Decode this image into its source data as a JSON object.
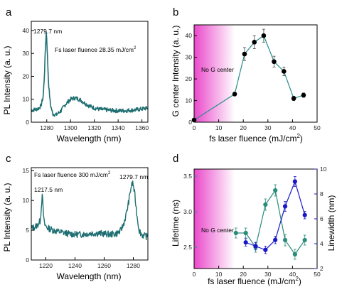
{
  "panels": {
    "a": "a",
    "b": "b",
    "c": "c",
    "d": "d"
  },
  "colors": {
    "spectrum": "#1f6f72",
    "spectrum_dark": "#0b2f30",
    "g_line": "#2a8c8c",
    "lifetime": "#2a8c7a",
    "linewidth": "#1a17c8",
    "no_g_region": "#e93fc8"
  },
  "chart_data": [
    {
      "id": "a",
      "type": "line",
      "xlabel": "Wavelength (nm)",
      "ylabel": "PL Intensity (a. u.)",
      "xlim": [
        1267,
        1365
      ],
      "ylim": [
        0,
        44
      ],
      "xticks": [
        1280,
        1300,
        1320,
        1340,
        1360
      ],
      "yticks": [
        0,
        10,
        20,
        30,
        40
      ],
      "grid": false,
      "annotations": [
        "1279.7 nm",
        "Fs laser fluence 28.35 mJ/cm",
        "2"
      ],
      "series": [
        {
          "x": [
            1267,
            1270,
            1273,
            1275,
            1277,
            1278,
            1279,
            1279.7,
            1280.5,
            1281.5,
            1283,
            1285,
            1288,
            1292,
            1296,
            1300,
            1304,
            1308,
            1312,
            1316,
            1320,
            1325,
            1330,
            1335,
            1340,
            1345,
            1350,
            1355,
            1360,
            1365
          ],
          "y": [
            5.2,
            5.5,
            6.0,
            7.0,
            11.0,
            20.0,
            34.0,
            40.0,
            30.0,
            17.0,
            8.0,
            3.6,
            3.2,
            5.0,
            8.0,
            10.0,
            10.6,
            9.8,
            8.3,
            7.0,
            6.2,
            5.6,
            5.4,
            5.1,
            5.0,
            5.0,
            5.2,
            5.4,
            5.8,
            6.2
          ]
        }
      ]
    },
    {
      "id": "b",
      "type": "scatter",
      "xlabel": "fs laser fluence (mJ/cm",
      "xlabel_sup": "2",
      "xlabel_end": ")",
      "ylabel": "G center Intensity (a. u.)",
      "xlim": [
        0,
        50
      ],
      "ylim": [
        0,
        45
      ],
      "xticks": [
        0,
        10,
        20,
        30,
        40,
        50
      ],
      "yticks": [
        0,
        10,
        20,
        30,
        40
      ],
      "grid": false,
      "shaded_region": {
        "x0": 0,
        "x1": 16.5,
        "label": "No G center"
      },
      "series": [
        {
          "x": [
            0,
            16.5,
            20.5,
            24.5,
            28.3,
            32.5,
            36.5,
            40.5,
            44.5
          ],
          "y": [
            1.0,
            13.0,
            31.5,
            37.0,
            40.0,
            28.0,
            23.5,
            11.0,
            12.5
          ],
          "err": [
            0,
            0.8,
            3.0,
            3.0,
            3.0,
            2.5,
            2.0,
            1.0,
            1.0
          ]
        }
      ]
    },
    {
      "id": "c",
      "type": "line",
      "xlabel": "Wavelength (nm)",
      "ylabel": "PL Intensity (a. u.)",
      "xlim": [
        1210,
        1290
      ],
      "ylim": [
        0,
        15.5
      ],
      "xticks": [
        1220,
        1240,
        1260,
        1280
      ],
      "yticks": [
        0,
        5,
        10,
        15
      ],
      "grid": false,
      "annotations": [
        "Fs laser fluence 300 mJ/cm",
        "2",
        "1279.7 nm",
        "1217.5 nm"
      ],
      "series": [
        {
          "x": [
            1210,
            1212,
            1214,
            1216,
            1217,
            1217.5,
            1218.2,
            1219,
            1221,
            1224,
            1228,
            1232,
            1236,
            1240,
            1244,
            1248,
            1252,
            1256,
            1260,
            1264,
            1268,
            1271,
            1273,
            1275,
            1277,
            1278.5,
            1279.7,
            1281,
            1282.5,
            1284,
            1286,
            1288,
            1290
          ],
          "y": [
            5.3,
            5.5,
            5.8,
            6.5,
            9.0,
            11.5,
            8.0,
            6.0,
            5.4,
            5.1,
            4.8,
            4.6,
            4.4,
            4.3,
            4.3,
            4.4,
            4.5,
            4.5,
            4.4,
            4.3,
            4.4,
            4.8,
            5.8,
            7.5,
            10.0,
            12.3,
            13.0,
            11.0,
            7.5,
            5.0,
            4.2,
            4.0,
            3.9
          ]
        }
      ]
    },
    {
      "id": "d",
      "type": "scatter",
      "xlabel": "fs laser fluence (mJ/cm",
      "xlabel_sup": "2",
      "xlabel_end": ")",
      "ylabel": "Lifetime (ns)",
      "ylabel_right": "Linewidth (nm)",
      "xlim": [
        0,
        50
      ],
      "ylim": [
        2.2,
        3.6
      ],
      "ylim_right": [
        2,
        10
      ],
      "xticks": [
        0,
        10,
        20,
        30,
        40,
        50
      ],
      "yticks": [
        2.5,
        3.0,
        3.5
      ],
      "yticks_right": [
        2,
        4,
        6,
        8,
        10
      ],
      "grid": false,
      "shaded_region": {
        "x0": 0,
        "x1": 16.5,
        "label": "No G center"
      },
      "series": [
        {
          "axis": "left",
          "x": [
            17,
            21,
            25,
            29,
            33,
            37,
            41,
            45
          ],
          "y": [
            2.7,
            2.7,
            2.5,
            3.1,
            3.3,
            2.6,
            2.4,
            2.6
          ],
          "err": [
            0.07,
            0.07,
            0.07,
            0.08,
            0.08,
            0.08,
            0.07,
            0.07
          ]
        },
        {
          "axis": "right",
          "x": [
            21,
            25,
            29,
            33,
            37,
            41,
            45
          ],
          "y": [
            4.1,
            3.8,
            3.5,
            4.3,
            7.0,
            9.0,
            6.3
          ],
          "err": [
            0.3,
            0.3,
            0.3,
            0.3,
            0.4,
            0.4,
            0.3
          ]
        }
      ]
    }
  ]
}
